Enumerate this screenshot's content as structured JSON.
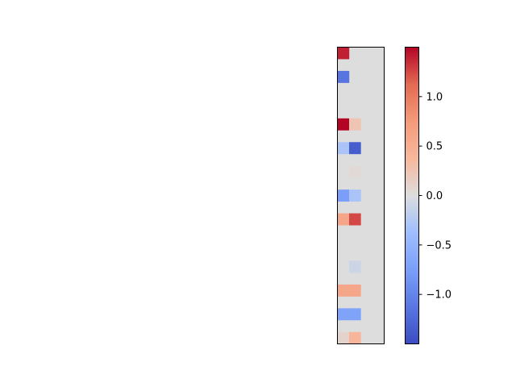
{
  "chart_data": {
    "type": "heatmap",
    "title": "",
    "xlabel": "",
    "ylabel": "",
    "n_rows": 25,
    "n_cols": 4,
    "axis_ticks_visible": false,
    "cells": [
      {
        "row": 0,
        "col": 0,
        "value": 1.4
      },
      {
        "row": 2,
        "col": 0,
        "value": -1.15
      },
      {
        "row": 6,
        "col": 0,
        "value": 1.5
      },
      {
        "row": 6,
        "col": 1,
        "value": 0.25
      },
      {
        "row": 8,
        "col": 0,
        "value": -0.3
      },
      {
        "row": 8,
        "col": 1,
        "value": -1.35
      },
      {
        "row": 10,
        "col": 1,
        "value": 0.04
      },
      {
        "row": 12,
        "col": 0,
        "value": -0.75
      },
      {
        "row": 12,
        "col": 1,
        "value": -0.3
      },
      {
        "row": 14,
        "col": 0,
        "value": 0.6
      },
      {
        "row": 14,
        "col": 1,
        "value": 1.25
      },
      {
        "row": 18,
        "col": 1,
        "value": -0.1
      },
      {
        "row": 20,
        "col": 0,
        "value": 0.6
      },
      {
        "row": 20,
        "col": 1,
        "value": 0.6
      },
      {
        "row": 22,
        "col": 0,
        "value": -0.7
      },
      {
        "row": 22,
        "col": 1,
        "value": -0.7
      },
      {
        "row": 24,
        "col": 0,
        "value": 0.1
      },
      {
        "row": 24,
        "col": 1,
        "value": 0.4
      }
    ],
    "colorbar": {
      "colormap": "coolwarm",
      "range": [
        -1.5,
        1.5
      ],
      "ticks": [
        1.0,
        0.5,
        0.0,
        -0.5,
        -1.0
      ],
      "tick_labels": [
        "1.0",
        "0.5",
        "0.0",
        "−0.5",
        "−1.0"
      ]
    }
  }
}
